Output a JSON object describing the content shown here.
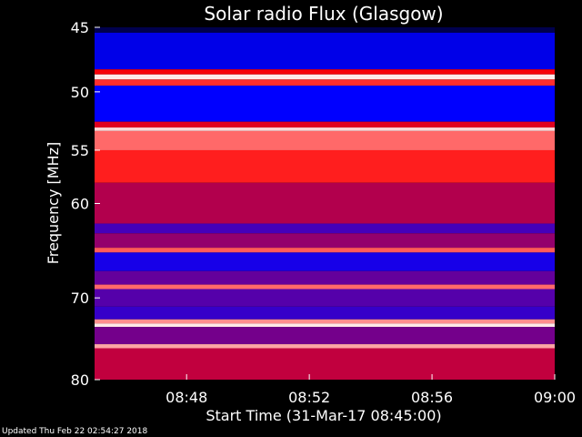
{
  "chart_data": {
    "type": "heatmap",
    "title": "Solar radio Flux (Glasgow)",
    "xlabel": "Start Time (31-Mar-17 08:45:00)",
    "ylabel": "Frequency [MHz]",
    "xlim": [
      "08:45",
      "09:00"
    ],
    "ylim": [
      45,
      80
    ],
    "y_scale": "log",
    "x_ticks": [
      "08:48",
      "08:52",
      "08:56",
      "09:00"
    ],
    "y_ticks": [
      45,
      50,
      55,
      60,
      70,
      80
    ],
    "colormap": [
      "#000000",
      "#0000ff",
      "#ff0000",
      "#ffffff"
    ],
    "bands": [
      {
        "from": 45.0,
        "to": 45.4,
        "level": 0.1
      },
      {
        "from": 45.4,
        "to": 48.2,
        "level": 0.3
      },
      {
        "from": 48.2,
        "to": 48.6,
        "level": 0.65
      },
      {
        "from": 48.6,
        "to": 49.0,
        "level": 0.97
      },
      {
        "from": 49.0,
        "to": 49.5,
        "level": 0.72
      },
      {
        "from": 49.5,
        "to": 52.5,
        "level": 0.33
      },
      {
        "from": 52.5,
        "to": 53.0,
        "level": 0.62
      },
      {
        "from": 53.0,
        "to": 53.3,
        "level": 0.95
      },
      {
        "from": 53.3,
        "to": 55.0,
        "level": 0.8
      },
      {
        "from": 55.0,
        "to": 58.0,
        "level": 0.7
      },
      {
        "from": 58.0,
        "to": 62.0,
        "level": 0.56
      },
      {
        "from": 62.0,
        "to": 63.0,
        "level": 0.42
      },
      {
        "from": 63.0,
        "to": 64.5,
        "level": 0.52
      },
      {
        "from": 64.5,
        "to": 65.0,
        "level": 0.78
      },
      {
        "from": 65.0,
        "to": 67.0,
        "level": 0.36
      },
      {
        "from": 67.0,
        "to": 68.5,
        "level": 0.46
      },
      {
        "from": 68.5,
        "to": 69.0,
        "level": 0.8
      },
      {
        "from": 69.0,
        "to": 71.0,
        "level": 0.44
      },
      {
        "from": 71.0,
        "to": 72.5,
        "level": 0.4
      },
      {
        "from": 72.5,
        "to": 73.0,
        "level": 0.85
      },
      {
        "from": 73.0,
        "to": 73.4,
        "level": 0.97
      },
      {
        "from": 73.4,
        "to": 75.5,
        "level": 0.48
      },
      {
        "from": 75.5,
        "to": 76.0,
        "level": 0.88
      },
      {
        "from": 76.0,
        "to": 80.0,
        "level": 0.58
      }
    ]
  },
  "footer": {
    "updated": "Updated Thu Feb 22 02:54:27 2018"
  }
}
